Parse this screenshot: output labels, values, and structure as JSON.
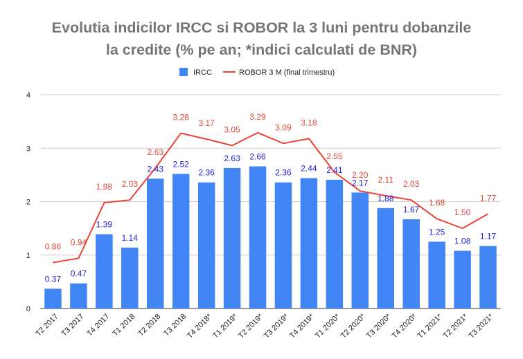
{
  "chart_data": {
    "type": "bar",
    "title_line1": "Evolutia indicilor IRCC si ROBOR la 3 luni pentru dobanzile",
    "title_line2": "la credite (% pe an; *indici calculati de BNR)",
    "categories": [
      "T2 2017",
      "T3 2017",
      "T4 2017",
      "T1 2018",
      "T2 2018",
      "T3 2018",
      "T4 2018*",
      "T1 2019*",
      "T2 2019*",
      "T3 2019*",
      "T4 2019*",
      "T1 2020*",
      "T2 2020*",
      "T3 2020*",
      "T4 2020*",
      "T1 2021*",
      "T2 2021*",
      "T3 2021*"
    ],
    "series": [
      {
        "name": "IRCC",
        "type": "bar",
        "color": "#4285f4",
        "label_color": "#1f1fd6",
        "values": [
          0.37,
          0.47,
          1.39,
          1.14,
          2.43,
          2.52,
          2.36,
          2.63,
          2.66,
          2.36,
          2.44,
          2.41,
          2.17,
          1.88,
          1.67,
          1.25,
          1.08,
          1.17
        ]
      },
      {
        "name": "ROBOR 3 M (final trimestru)",
        "type": "line",
        "color": "#ea4335",
        "label_color": "#e2463b",
        "values": [
          0.86,
          0.94,
          1.98,
          2.03,
          2.63,
          3.28,
          3.17,
          3.05,
          3.29,
          3.09,
          3.18,
          2.55,
          2.2,
          2.11,
          2.03,
          1.68,
          1.5,
          1.77
        ]
      }
    ],
    "ylim": [
      0,
      4
    ],
    "yticks": [
      "0",
      "1",
      "2",
      "3",
      "4"
    ],
    "grid": true,
    "legend": "top-center"
  }
}
